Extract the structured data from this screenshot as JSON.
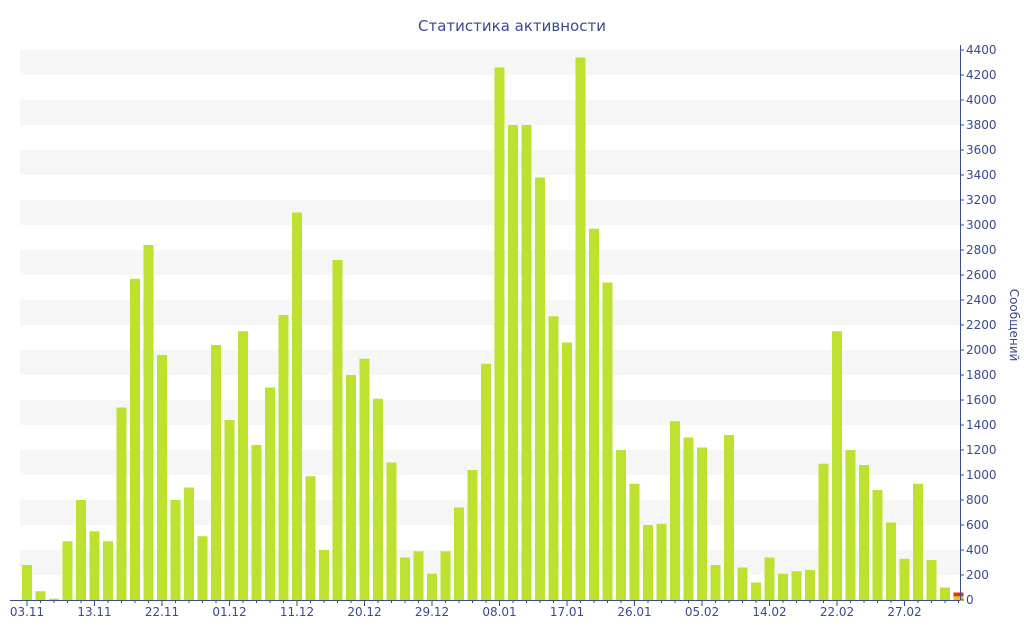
{
  "chart_data": {
    "type": "bar",
    "title": "Статистика активности",
    "ylabel": "Сообщений",
    "xlabel": "",
    "ylim": [
      0,
      4400
    ],
    "y_ticks": [
      0,
      200,
      400,
      600,
      800,
      1000,
      1200,
      1400,
      1600,
      1800,
      2000,
      2200,
      2400,
      2600,
      2800,
      3000,
      3200,
      3400,
      3600,
      3800,
      4000,
      4200,
      4400
    ],
    "y_axis_position": "right",
    "grid": "alternating horizontal bands",
    "x_tick_labels": [
      {
        "label": "03.11",
        "index": 0
      },
      {
        "label": "13.11",
        "index": 5
      },
      {
        "label": "22.11",
        "index": 10
      },
      {
        "label": "01.12",
        "index": 15
      },
      {
        "label": "11.12",
        "index": 20
      },
      {
        "label": "20.12",
        "index": 25
      },
      {
        "label": "29.12",
        "index": 30
      },
      {
        "label": "08.01",
        "index": 35
      },
      {
        "label": "17.01",
        "index": 40
      },
      {
        "label": "26.01",
        "index": 45
      },
      {
        "label": "05.02",
        "index": 50
      },
      {
        "label": "14.02",
        "index": 55
      },
      {
        "label": "22.02",
        "index": 60
      },
      {
        "label": "27.02",
        "index": 65
      }
    ],
    "series": [
      {
        "color": "#bde12f",
        "values": [
          280,
          70,
          10,
          470,
          800,
          550,
          470,
          1540,
          2570,
          2840,
          1960,
          800,
          900,
          510,
          2040,
          1440,
          2150,
          1240,
          1700,
          2280,
          3100,
          990,
          400,
          2720,
          1800,
          1930,
          1610,
          1100,
          340,
          390,
          210,
          390,
          740,
          1040,
          1890,
          4260,
          3800,
          3800,
          3380,
          2270,
          2060,
          4340,
          2970,
          2540,
          1200,
          930,
          600,
          610,
          1430,
          1300,
          1220,
          280,
          1320,
          260,
          140,
          340,
          210,
          230,
          240,
          1090,
          2150,
          1200,
          1080,
          880,
          620,
          330,
          930,
          320,
          100,
          60
        ]
      }
    ],
    "last_bar_highlight_color": "#dd3322"
  }
}
